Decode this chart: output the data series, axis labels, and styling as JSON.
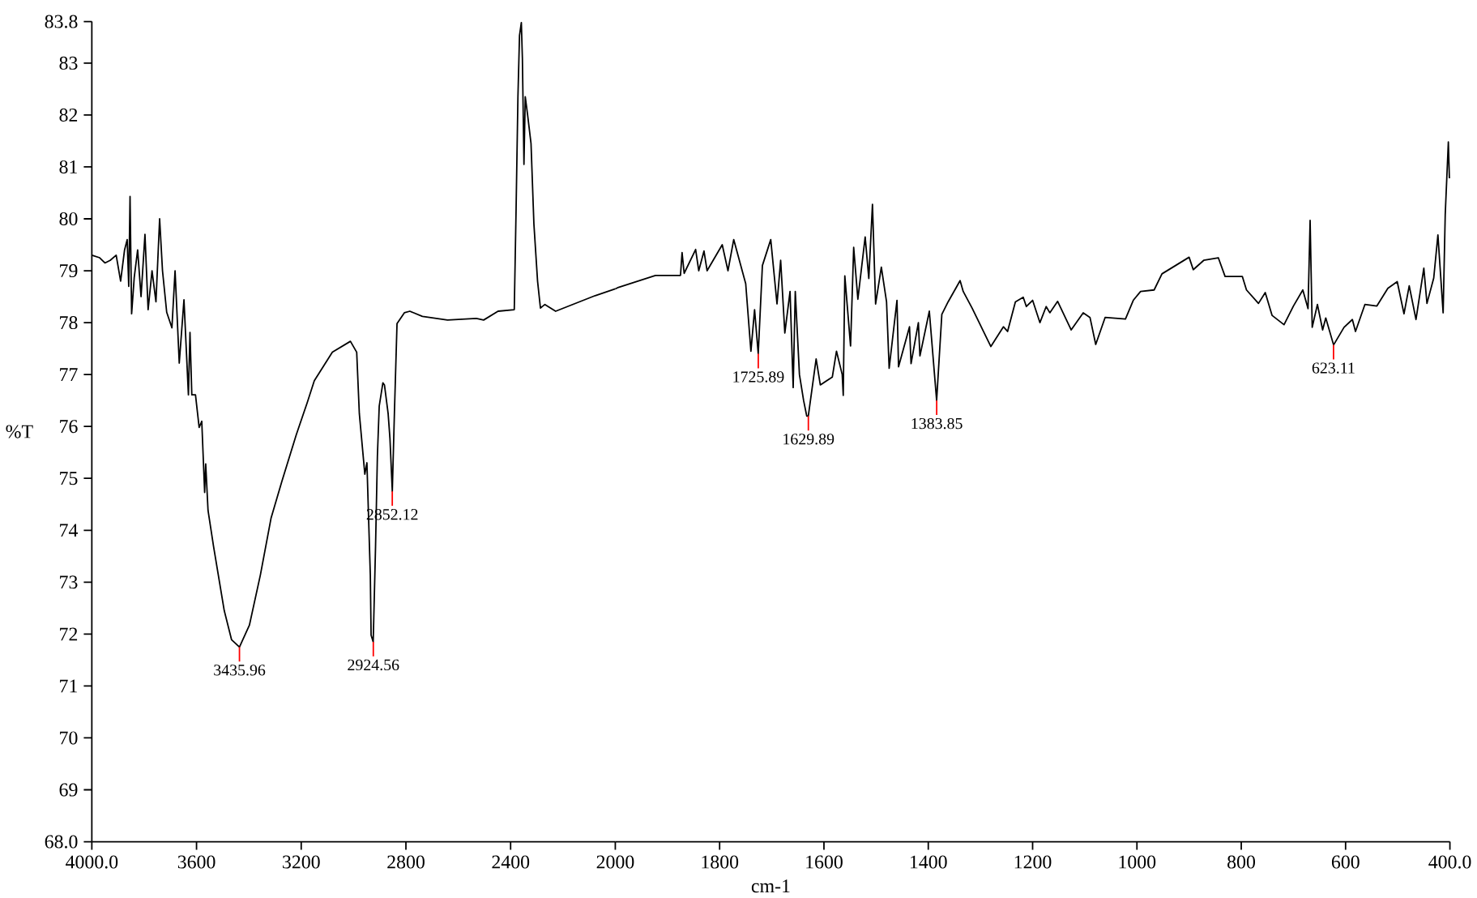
{
  "chart_data": [
    {
      "type": "line",
      "ylabel": "%T",
      "xlim": [
        4000,
        2000
      ],
      "ylim": [
        68,
        83.8
      ],
      "xticks": [
        {
          "value": 4000,
          "label": "4000.0"
        },
        3600,
        3200,
        2800,
        2400
      ],
      "yticks": [
        {
          "value": 68,
          "label": "68.0"
        },
        69,
        70,
        71,
        72,
        73,
        74,
        75,
        76,
        77,
        78,
        79,
        80,
        81,
        82,
        83,
        {
          "value": 83.8,
          "label": "83.8"
        }
      ],
      "series": [
        {
          "color": "#000000",
          "x": [
            4000,
            3970,
            3950,
            3930,
            3907,
            3890,
            3875,
            3865,
            3859,
            3854,
            3848,
            3838,
            3825,
            3812,
            3797,
            3785,
            3770,
            3755,
            3741,
            3730,
            3714,
            3694,
            3682,
            3666,
            3648,
            3631,
            3625,
            3618,
            3604,
            3590,
            3580,
            3569,
            3565,
            3556,
            3535,
            3494,
            3466,
            3436,
            3398,
            3356,
            3315,
            3274,
            3219,
            3177,
            3150,
            3081,
            3012,
            2988,
            2978,
            2957,
            2949,
            2936,
            2933,
            2925,
            2916,
            2909,
            2902,
            2888,
            2882,
            2868,
            2861,
            2852,
            2844,
            2834,
            2806,
            2785,
            2737,
            2641,
            2531,
            2503,
            2448,
            2386,
            2379,
            2372,
            2366,
            2359,
            2355,
            2349,
            2344,
            2335,
            2322,
            2311,
            2297,
            2286,
            2269,
            2228,
            2077,
            2000
          ],
          "values": [
            79.3,
            79.25,
            79.15,
            79.2,
            79.3,
            78.8,
            79.4,
            79.6,
            78.7,
            80.43,
            78.17,
            78.87,
            79.4,
            78.5,
            79.7,
            78.25,
            79.0,
            78.4,
            80.0,
            79.0,
            78.2,
            77.9,
            79.0,
            77.22,
            78.44,
            76.61,
            77.81,
            76.61,
            76.61,
            75.98,
            76.1,
            74.73,
            75.28,
            74.38,
            73.69,
            72.45,
            71.89,
            71.75,
            72.17,
            73.14,
            74.24,
            74.94,
            75.84,
            76.46,
            76.88,
            77.43,
            77.64,
            77.43,
            76.25,
            75.08,
            75.3,
            73.14,
            71.98,
            71.85,
            73.69,
            75.42,
            76.39,
            76.84,
            76.8,
            76.25,
            75.77,
            74.75,
            76.25,
            77.98,
            78.19,
            78.22,
            78.12,
            78.05,
            78.08,
            78.05,
            78.22,
            78.25,
            80.2,
            82.35,
            83.53,
            83.78,
            83.1,
            81.05,
            82.35,
            82.0,
            81.45,
            79.9,
            78.8,
            78.28,
            78.35,
            78.22,
            78.52,
            78.65
          ]
        }
      ],
      "annotations": [
        {
          "text": "3435.96",
          "x": 3435.96,
          "y": 71.75
        },
        {
          "text": "2924.56",
          "x": 2924.56,
          "y": 71.85
        },
        {
          "text": "2852.12",
          "x": 2852.12,
          "y": 74.75
        }
      ]
    },
    {
      "type": "line",
      "xlabel": "cm-1",
      "xlim": [
        2000,
        400
      ],
      "ylim": [
        68,
        83.8
      ],
      "tick_labels": "x",
      "xticks": [
        2000,
        1800,
        1600,
        1400,
        1200,
        1000,
        800,
        600,
        {
          "value": 400,
          "label": "400.0"
        }
      ],
      "series": [
        {
          "color": "#000000",
          "x": [
            2000,
            1994,
            1923,
            1875,
            1872,
            1868,
            1846,
            1840,
            1830,
            1824,
            1795,
            1784,
            1773,
            1750,
            1740,
            1733,
            1726,
            1718,
            1702,
            1690,
            1683,
            1675,
            1665,
            1659,
            1655,
            1647,
            1639,
            1633,
            1630,
            1615,
            1607,
            1584,
            1576,
            1565,
            1563,
            1560,
            1549,
            1543,
            1535,
            1521,
            1514,
            1507,
            1501,
            1490,
            1480,
            1475,
            1460,
            1457,
            1436,
            1433,
            1419,
            1416,
            1398,
            1384,
            1374,
            1362,
            1339,
            1333,
            1316,
            1280,
            1256,
            1248,
            1233,
            1218,
            1212,
            1200,
            1186,
            1174,
            1167,
            1152,
            1126,
            1103,
            1090,
            1079,
            1061,
            1022,
            1007,
            993,
            967,
            952,
            900,
            892,
            872,
            844,
            831,
            798,
            790,
            767,
            754,
            741,
            718,
            700,
            682,
            672,
            668,
            664,
            654,
            644,
            638,
            623,
            603,
            587,
            581,
            563,
            540,
            519,
            501,
            488,
            478,
            465,
            450,
            444,
            431,
            423,
            413,
            409,
            403,
            401
          ],
          "values": [
            78.65,
            78.68,
            78.91,
            78.91,
            79.35,
            78.95,
            79.41,
            79.0,
            79.38,
            79.0,
            79.5,
            79.0,
            79.6,
            78.75,
            77.45,
            78.25,
            77.4,
            79.1,
            79.6,
            78.36,
            79.2,
            77.8,
            78.6,
            76.75,
            78.6,
            77.0,
            76.5,
            76.2,
            76.2,
            77.3,
            76.8,
            76.95,
            77.45,
            77.0,
            76.6,
            78.9,
            77.55,
            79.45,
            78.45,
            79.65,
            78.85,
            80.28,
            78.36,
            79.07,
            78.4,
            77.12,
            78.43,
            77.15,
            77.92,
            77.21,
            78.0,
            77.36,
            78.22,
            76.5,
            78.16,
            78.4,
            78.81,
            78.6,
            78.28,
            77.54,
            77.92,
            77.83,
            78.4,
            78.49,
            78.31,
            78.43,
            78.0,
            78.31,
            78.19,
            78.41,
            77.86,
            78.19,
            78.1,
            77.58,
            78.1,
            78.07,
            78.43,
            78.6,
            78.63,
            78.94,
            79.26,
            79.02,
            79.2,
            79.25,
            78.89,
            78.89,
            78.63,
            78.37,
            78.58,
            78.14,
            77.96,
            78.32,
            78.63,
            78.27,
            79.97,
            77.91,
            78.35,
            77.86,
            78.09,
            77.57,
            77.91,
            78.06,
            77.83,
            78.35,
            78.32,
            78.66,
            78.79,
            78.17,
            78.71,
            78.06,
            79.05,
            78.37,
            78.86,
            79.69,
            78.19,
            80.08,
            81.48,
            80.78
          ]
        }
      ],
      "annotations": [
        {
          "text": "1725.89",
          "x": 1725.89,
          "y": 77.4
        },
        {
          "text": "1629.89",
          "x": 1629.89,
          "y": 76.2
        },
        {
          "text": "1383.85",
          "x": 1383.85,
          "y": 76.5
        },
        {
          "text": "623.11",
          "x": 623.11,
          "y": 77.57
        }
      ]
    }
  ]
}
